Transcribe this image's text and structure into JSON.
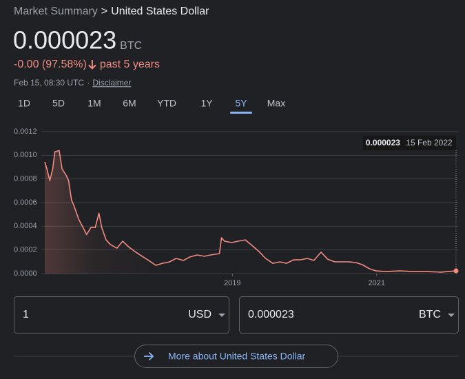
{
  "breadcrumb": {
    "parent": "Market Summary",
    "separator": ">",
    "current": "United States Dollar"
  },
  "price": {
    "value": "0.000023",
    "unit": "BTC"
  },
  "change": {
    "text": "-0.00 (97.58%)",
    "period": "past 5 years"
  },
  "timestamp": {
    "text": "Feb 15, 08:30 UTC",
    "separator": "·",
    "link": "Disclaimer"
  },
  "tabs": [
    "1D",
    "5D",
    "1M",
    "6M",
    "YTD",
    "1Y",
    "5Y",
    "Max"
  ],
  "selected_tab": 6,
  "chart_data": {
    "type": "line",
    "x": [
      2016.4,
      2016.43,
      2016.47,
      2016.51,
      2016.54,
      2016.6,
      2016.64,
      2016.7,
      2016.73,
      2016.77,
      2016.81,
      2016.87,
      2016.93,
      2016.98,
      2017.04,
      2017.1,
      2017.15,
      2017.19,
      2017.25,
      2017.31,
      2017.4,
      2017.48,
      2017.56,
      2017.65,
      2017.75,
      2017.84,
      2017.94,
      2018.03,
      2018.13,
      2018.22,
      2018.32,
      2018.41,
      2018.51,
      2018.61,
      2018.7,
      2018.82,
      2018.85,
      2018.89,
      2018.99,
      2019.08,
      2019.18,
      2019.27,
      2019.37,
      2019.46,
      2019.56,
      2019.66,
      2019.75,
      2019.85,
      2019.94,
      2020.04,
      2020.13,
      2020.23,
      2020.32,
      2020.42,
      2020.51,
      2020.61,
      2020.71,
      2020.8,
      2020.9,
      2020.99,
      2021.13,
      2021.32,
      2021.51,
      2021.7,
      2021.89,
      2022.1
    ],
    "series": [
      {
        "color": "#f28b82",
        "values": [
          0.000944,
          0.000885,
          0.000786,
          0.000885,
          0.00103,
          0.00104,
          0.000885,
          0.000827,
          0.000786,
          0.000623,
          0.000565,
          0.00046,
          0.00039,
          0.00033,
          0.00039,
          0.00039,
          0.00051,
          0.00039,
          0.000285,
          0.000245,
          0.000215,
          0.000274,
          0.000227,
          0.000186,
          0.000146,
          0.000111,
          7e-05,
          8.7e-05,
          9.9e-05,
          0.000128,
          0.000111,
          0.00014,
          0.000157,
          0.000146,
          0.000157,
          0.000169,
          0.000303,
          0.000274,
          0.000262,
          0.000274,
          0.000285,
          0.000239,
          0.000186,
          0.000128,
          8.7e-05,
          9.9e-05,
          8.7e-05,
          0.000116,
          0.000116,
          0.000128,
          0.000111,
          0.000181,
          0.000122,
          9.9e-05,
          9.9e-05,
          9.9e-05,
          9.3e-05,
          7.6e-05,
          4.1e-05,
          2.3e-05,
          1.7e-05,
          2.3e-05,
          1.7e-05,
          1.7e-05,
          1.2e-05,
          2.3e-05
        ]
      }
    ],
    "xlim": [
      2016.4,
      2022.1
    ],
    "xticks": [
      2019,
      2021
    ],
    "ylim": [
      0,
      0.0012
    ],
    "yticks": [
      {
        "value": 0,
        "label": "0.0000"
      },
      {
        "value": 0.0002,
        "label": "0.0002"
      },
      {
        "value": 0.0004,
        "label": "0.0004"
      },
      {
        "value": 0.0006,
        "label": "0.0006"
      },
      {
        "value": 0.0008,
        "label": "0.0008"
      },
      {
        "value": 0.001,
        "label": "0.0010"
      },
      {
        "value": 0.0012,
        "label": "0.0012"
      }
    ],
    "grid": true,
    "tooltip": {
      "value": "0.000023",
      "date": "15 Feb 2022"
    }
  },
  "converter": {
    "from_amount": "1",
    "from_currency": "USD",
    "to_amount": "0.000023",
    "to_currency": "BTC"
  },
  "more_link": "More about United States Dollar"
}
